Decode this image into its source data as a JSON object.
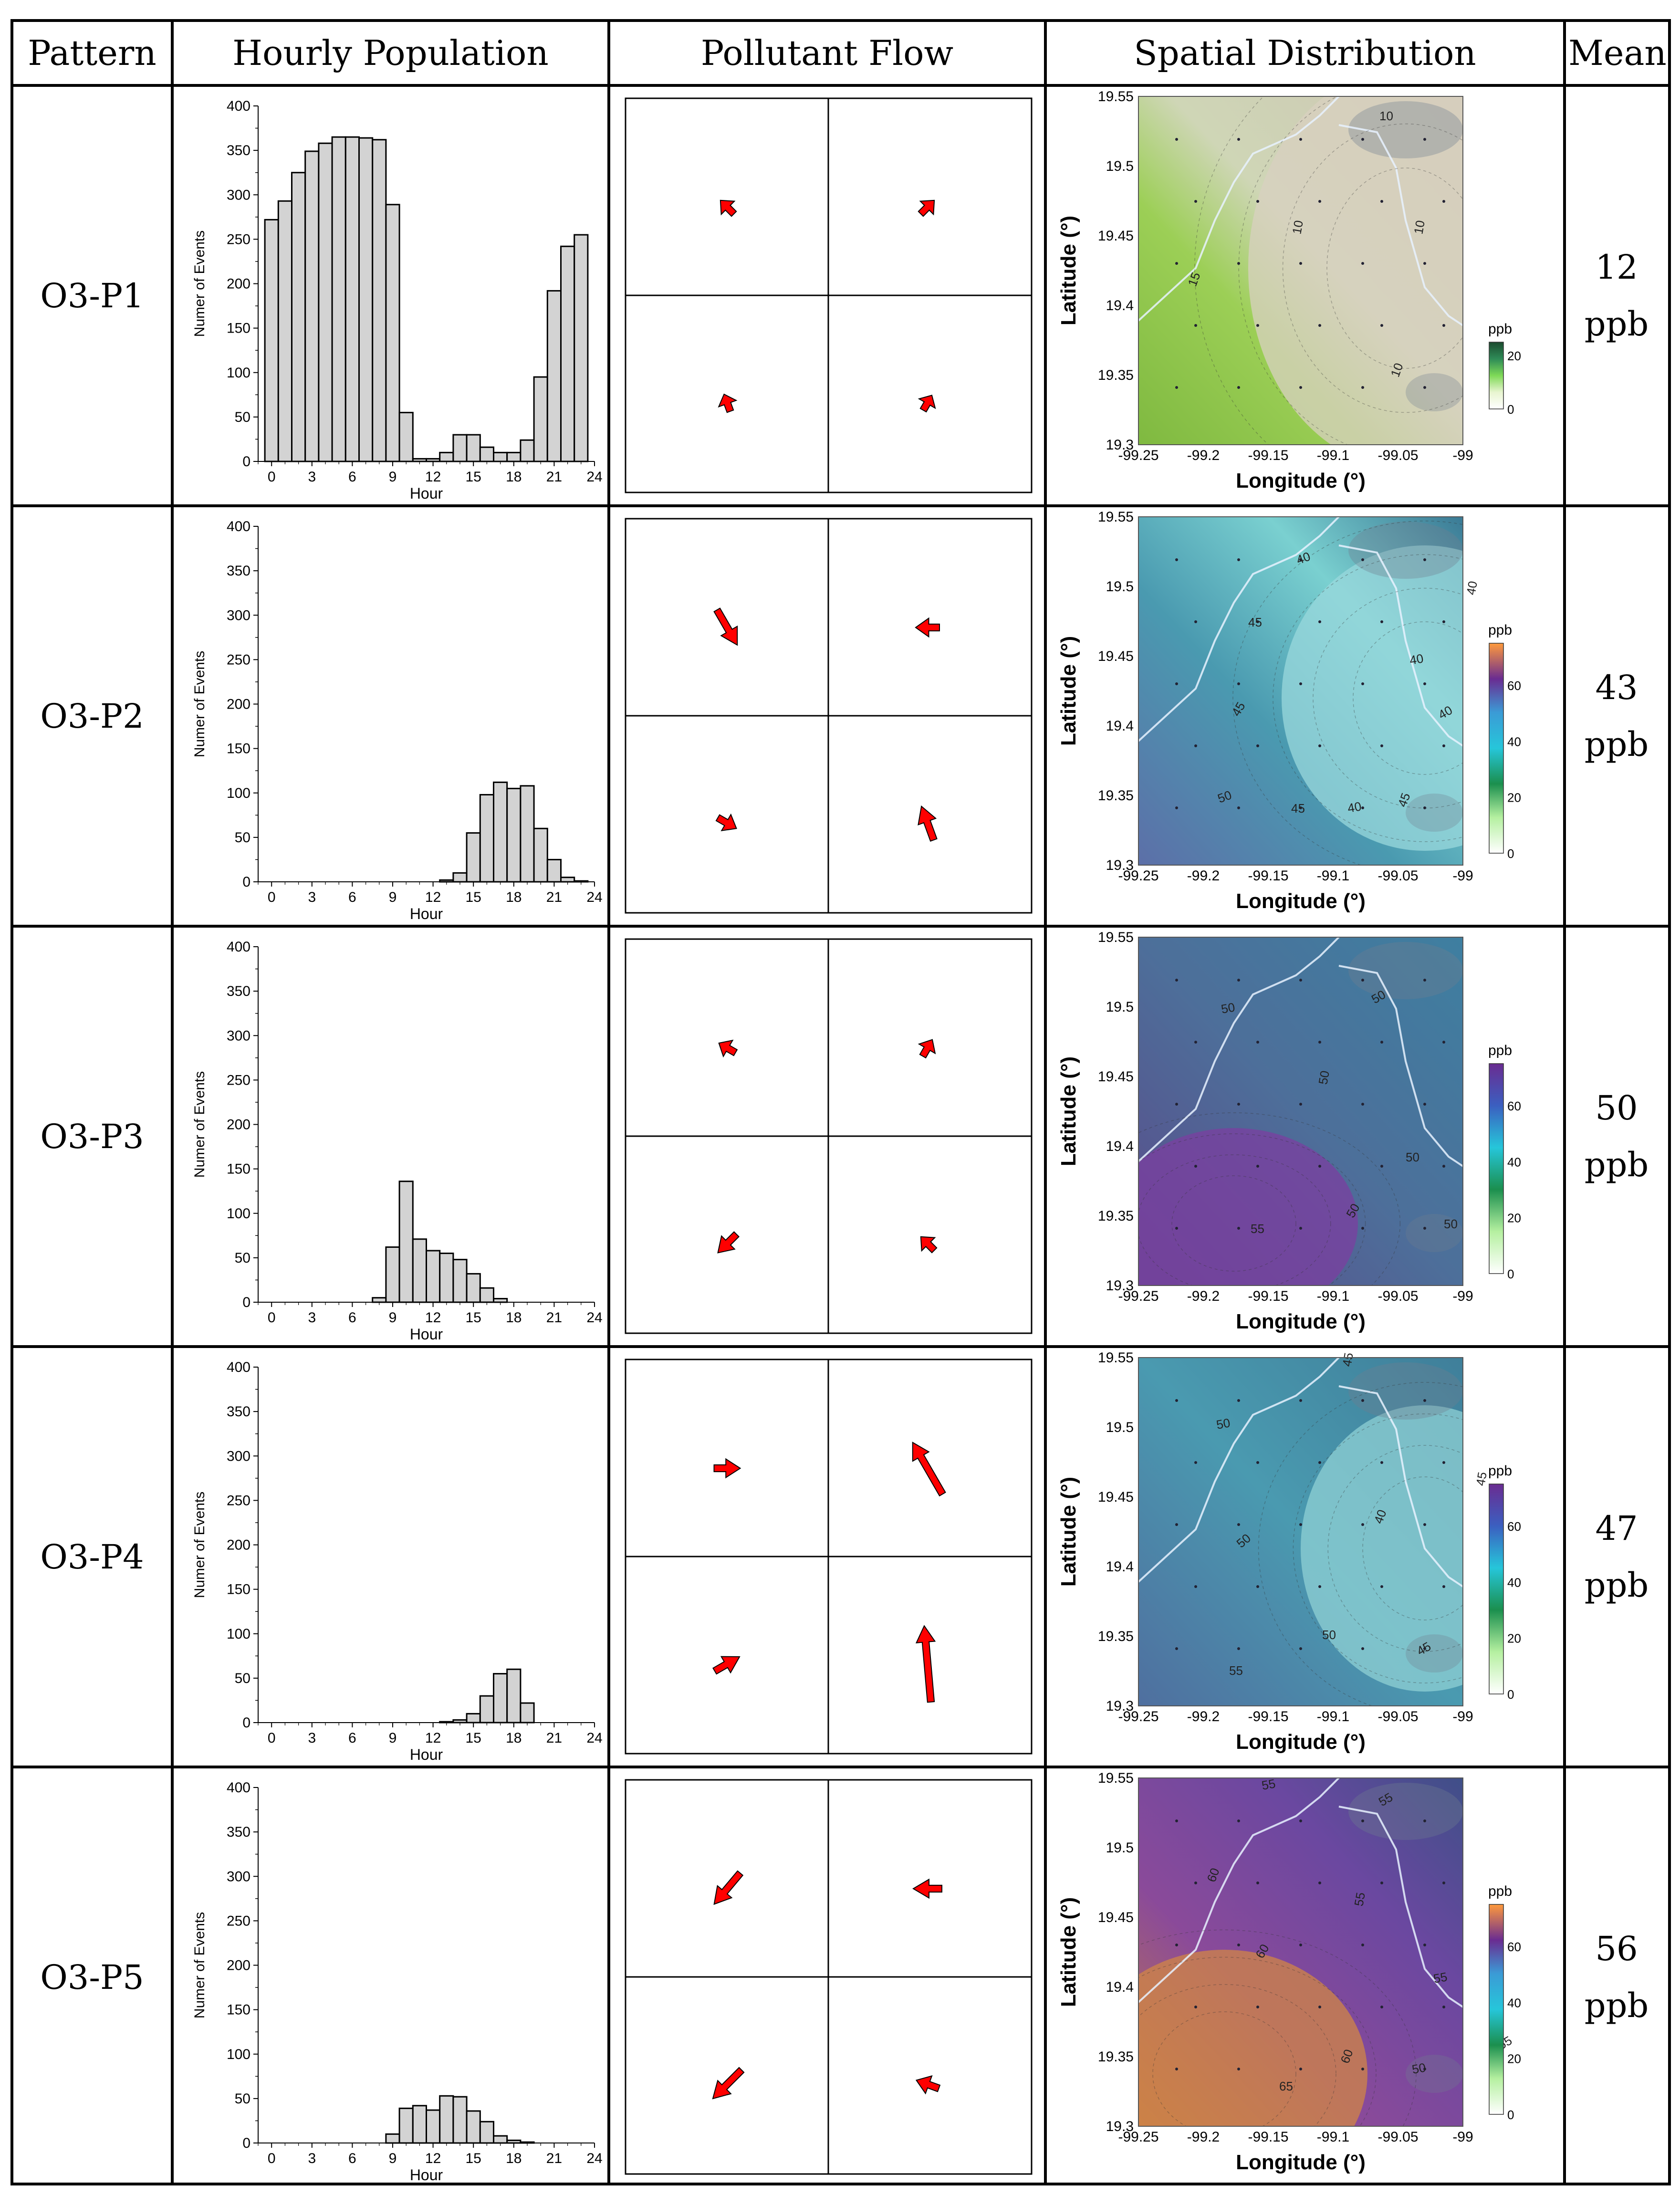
{
  "headers": {
    "pattern": "Pattern",
    "hourly": "Hourly Population",
    "flow": "Pollutant Flow",
    "spatial": "Spatial Distribution",
    "mean": "Mean"
  },
  "hist_axis": {
    "ylabel": "Numer of Events",
    "xlabel": "Hour",
    "yticks": [
      "0",
      "50",
      "100",
      "150",
      "200",
      "250",
      "300",
      "350",
      "400"
    ],
    "xticks": [
      "0",
      "3",
      "6",
      "9",
      "12",
      "15",
      "18",
      "21",
      "24"
    ]
  },
  "map_axis": {
    "xlabel": "Longitude (°)",
    "ylabel": "Latitude (°)",
    "xticks": [
      "-99.25",
      "-99.2",
      "-99.15",
      "-99.1",
      "-99.05",
      "-99"
    ],
    "yticks": [
      "19.3",
      "19.35",
      "19.4",
      "19.45",
      "19.5",
      "19.55"
    ],
    "unit": "ppb"
  },
  "rows": [
    {
      "name": "O3-P1",
      "mean_value": "12",
      "mean_unit": "ppb",
      "colorbar_ticks": [
        "0",
        "20"
      ],
      "contours": [
        "10",
        "10",
        "10",
        "10",
        "15"
      ]
    },
    {
      "name": "O3-P2",
      "mean_value": "43",
      "mean_unit": "ppb",
      "colorbar_ticks": [
        "0",
        "20",
        "40",
        "60"
      ],
      "contours": [
        "40",
        "45",
        "40",
        "40",
        "45",
        "50",
        "45",
        "40",
        "45",
        "40"
      ]
    },
    {
      "name": "O3-P3",
      "mean_value": "50",
      "mean_unit": "ppb",
      "colorbar_ticks": [
        "0",
        "20",
        "40",
        "60"
      ],
      "contours": [
        "50",
        "50",
        "50",
        "50",
        "55",
        "50",
        "50"
      ]
    },
    {
      "name": "O3-P4",
      "mean_value": "47",
      "mean_unit": "ppb",
      "colorbar_ticks": [
        "0",
        "20",
        "40",
        "60"
      ],
      "contours": [
        "45",
        "50",
        "45",
        "40",
        "50",
        "50",
        "45",
        "55"
      ]
    },
    {
      "name": "O3-P5",
      "mean_value": "56",
      "mean_unit": "ppb",
      "colorbar_ticks": [
        "0",
        "20",
        "40",
        "60"
      ],
      "contours": [
        "55",
        "55",
        "60",
        "60",
        "55",
        "65",
        "60",
        "55",
        "50",
        "55"
      ]
    }
  ],
  "chart_data": [
    {
      "type": "bar",
      "title": "O3-P1 Hourly Population",
      "xlabel": "Hour",
      "ylabel": "Numer of Events",
      "ylim": [
        0,
        400
      ],
      "xlim": [
        -1,
        24
      ],
      "categories": [
        "0",
        "1",
        "2",
        "3",
        "4",
        "5",
        "6",
        "7",
        "8",
        "9",
        "10",
        "11",
        "12",
        "13",
        "14",
        "15",
        "16",
        "17",
        "18",
        "19",
        "20",
        "21",
        "22",
        "23"
      ],
      "values": [
        272,
        293,
        325,
        349,
        358,
        365,
        365,
        364,
        362,
        289,
        55,
        3,
        3,
        10,
        30,
        30,
        16,
        10,
        10,
        24,
        95,
        192,
        242,
        255
      ]
    },
    {
      "type": "bar",
      "title": "O3-P2 Hourly Population",
      "xlabel": "Hour",
      "ylabel": "Numer of Events",
      "ylim": [
        0,
        400
      ],
      "xlim": [
        -1,
        24
      ],
      "categories": [
        "0",
        "1",
        "2",
        "3",
        "4",
        "5",
        "6",
        "7",
        "8",
        "9",
        "10",
        "11",
        "12",
        "13",
        "14",
        "15",
        "16",
        "17",
        "18",
        "19",
        "20",
        "21",
        "22",
        "23"
      ],
      "values": [
        0,
        0,
        0,
        0,
        0,
        0,
        0,
        0,
        0,
        0,
        0,
        0,
        0,
        2,
        10,
        55,
        98,
        112,
        105,
        108,
        60,
        25,
        5,
        1
      ]
    },
    {
      "type": "bar",
      "title": "O3-P3 Hourly Population",
      "xlabel": "Hour",
      "ylabel": "Numer of Events",
      "ylim": [
        0,
        400
      ],
      "xlim": [
        -1,
        24
      ],
      "categories": [
        "0",
        "1",
        "2",
        "3",
        "4",
        "5",
        "6",
        "7",
        "8",
        "9",
        "10",
        "11",
        "12",
        "13",
        "14",
        "15",
        "16",
        "17",
        "18",
        "19",
        "20",
        "21",
        "22",
        "23"
      ],
      "values": [
        0,
        0,
        0,
        0,
        0,
        0,
        0,
        0,
        5,
        62,
        136,
        71,
        58,
        55,
        48,
        32,
        16,
        4,
        0,
        0,
        0,
        0,
        0,
        0
      ]
    },
    {
      "type": "bar",
      "title": "O3-P4 Hourly Population",
      "xlabel": "Hour",
      "ylabel": "Numer of Events",
      "ylim": [
        0,
        400
      ],
      "xlim": [
        -1,
        24
      ],
      "categories": [
        "0",
        "1",
        "2",
        "3",
        "4",
        "5",
        "6",
        "7",
        "8",
        "9",
        "10",
        "11",
        "12",
        "13",
        "14",
        "15",
        "16",
        "17",
        "18",
        "19",
        "20",
        "21",
        "22",
        "23"
      ],
      "values": [
        0,
        0,
        0,
        0,
        0,
        0,
        0,
        0,
        0,
        0,
        0,
        0,
        0,
        1,
        3,
        10,
        30,
        55,
        60,
        22,
        0,
        0,
        0,
        0
      ]
    },
    {
      "type": "bar",
      "title": "O3-P5 Hourly Population",
      "xlabel": "Hour",
      "ylabel": "Numer of Events",
      "ylim": [
        0,
        400
      ],
      "xlim": [
        -1,
        24
      ],
      "categories": [
        "0",
        "1",
        "2",
        "3",
        "4",
        "5",
        "6",
        "7",
        "8",
        "9",
        "10",
        "11",
        "12",
        "13",
        "14",
        "15",
        "16",
        "17",
        "18",
        "19",
        "20",
        "21",
        "22",
        "23"
      ],
      "values": [
        0,
        0,
        0,
        0,
        0,
        0,
        0,
        0,
        0,
        10,
        39,
        42,
        37,
        53,
        52,
        36,
        24,
        8,
        3,
        1,
        0,
        0,
        0,
        0
      ]
    }
  ]
}
